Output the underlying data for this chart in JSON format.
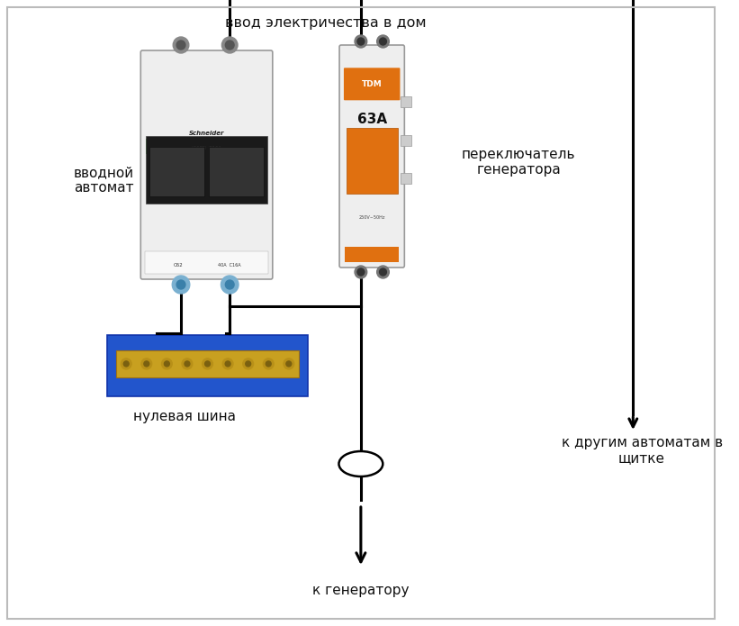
{
  "bg_color": "#ffffff",
  "border_color": "#bbbbbb",
  "label_vvod": "ввод электричества в дом",
  "label_vvodnoy": "вводной\nавтомат",
  "label_perekl": "переключатель\nгенератора",
  "label_nulevaya": "нулевая шина",
  "label_generator": "к генератору",
  "label_avtomaty": "к другим автоматам в\nщитке",
  "line_color": "#000000",
  "line_width": 2.2,
  "schneider_green": "#3aaa3a",
  "schneider_black": "#1a1a1a",
  "tdm_orange": "#e07010",
  "busbar_gold": "#c8a020",
  "busbar_blue": "#2255cc",
  "body_color": "#eeeeee"
}
